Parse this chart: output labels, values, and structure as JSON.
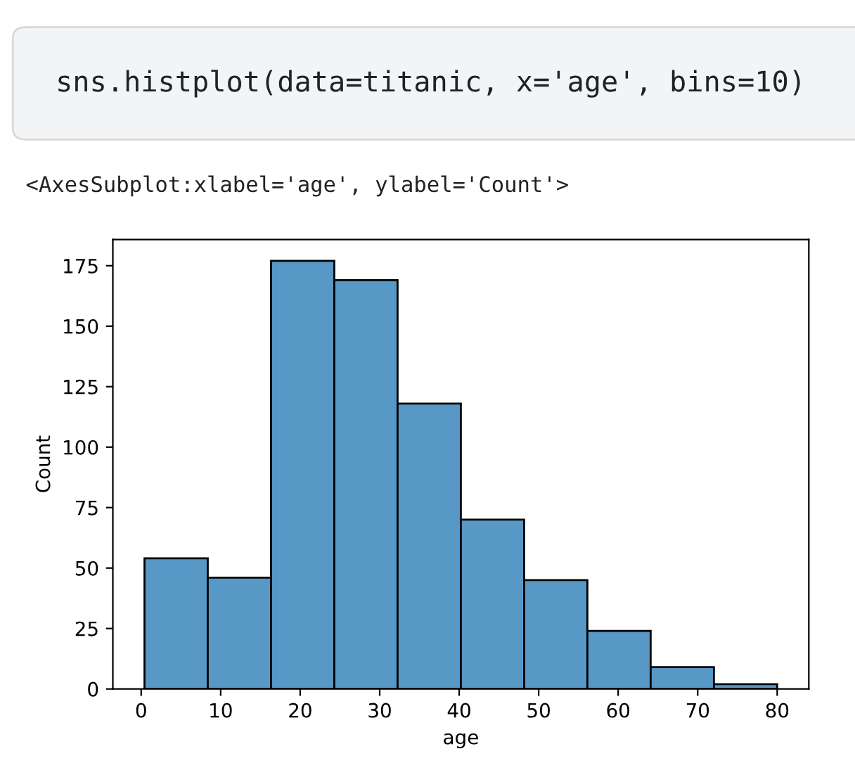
{
  "chart_data": {
    "type": "histogram",
    "xlabel": "age",
    "ylabel": "Count",
    "annotations": [
      "sns.histplot(data=titanic, x='age', bins=10)",
      "<AxesSubplot:xlabel='age', ylabel='Count'>"
    ],
    "bins": [
      0.42,
      8.378,
      16.336,
      24.294,
      32.252,
      40.21,
      48.168,
      56.126,
      64.084,
      72.042,
      80
    ],
    "values": [
      54,
      46,
      177,
      169,
      118,
      70,
      45,
      24,
      9,
      2
    ],
    "color": "#5798c7",
    "xlim": [
      -3.56,
      83.98
    ],
    "ylim": [
      0,
      185.85
    ],
    "xticks": [
      0,
      10,
      20,
      30,
      40,
      50,
      60,
      70,
      80
    ],
    "yticks": [
      0,
      25,
      50,
      75,
      100,
      125,
      150,
      175
    ],
    "grid": false
  }
}
